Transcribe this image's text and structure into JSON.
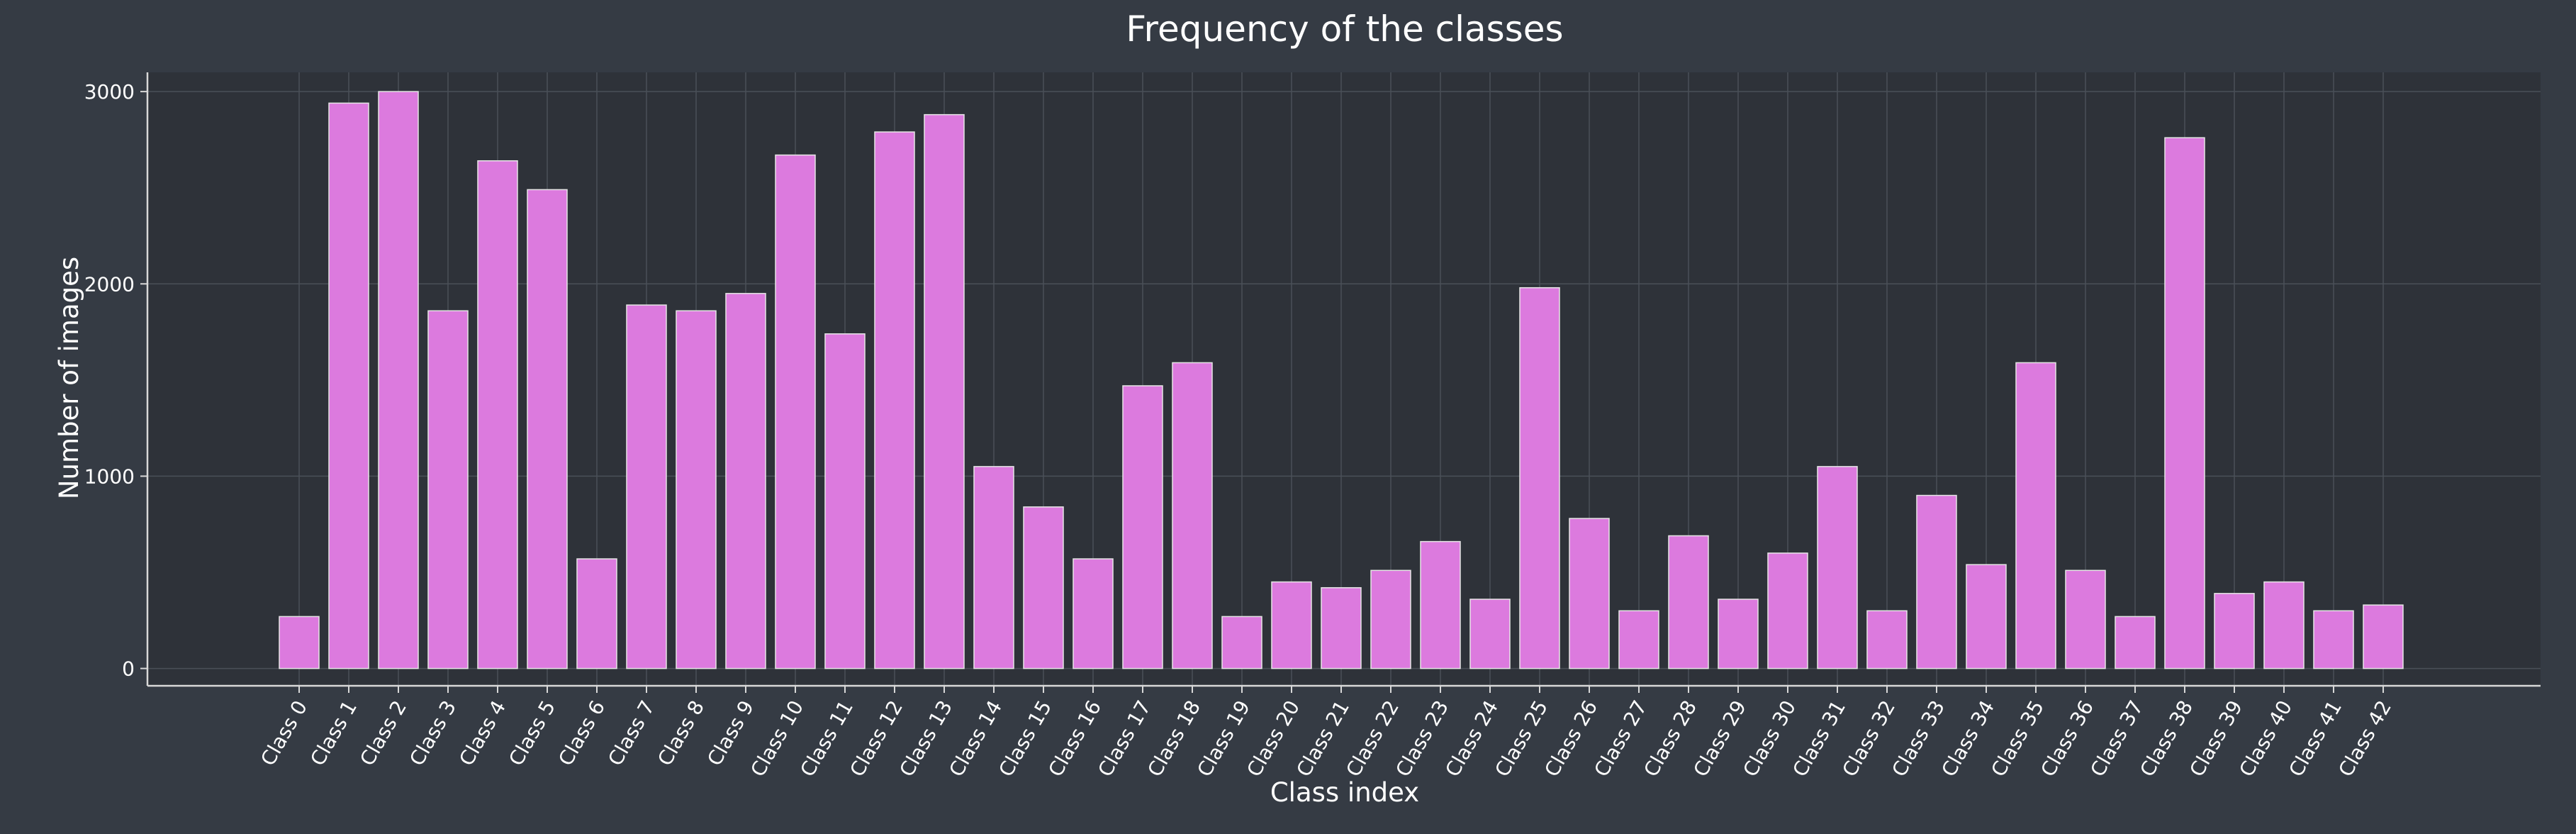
{
  "colors": {
    "background": "#353b44",
    "plot_background": "#2e3239",
    "bar_fill": "#dc7ade",
    "bar_stroke": "#e6e6e6",
    "grid": "#4a5058",
    "axis": "#d8d8d8",
    "text": "#ffffff"
  },
  "chart_data": {
    "type": "bar",
    "title": "Frequency of the classes",
    "xlabel": "Class index",
    "ylabel": "Number of images",
    "ylim": [
      -90,
      3100
    ],
    "yticks": [
      0,
      1000,
      2000,
      3000
    ],
    "grid": true,
    "legend": "none",
    "categories": [
      "Class 0",
      "Class 1",
      "Class 2",
      "Class 3",
      "Class 4",
      "Class 5",
      "Class 6",
      "Class 7",
      "Class 8",
      "Class 9",
      "Class 10",
      "Class 11",
      "Class 12",
      "Class 13",
      "Class 14",
      "Class 15",
      "Class 16",
      "Class 17",
      "Class 18",
      "Class 19",
      "Class 20",
      "Class 21",
      "Class 22",
      "Class 23",
      "Class 24",
      "Class 25",
      "Class 26",
      "Class 27",
      "Class 28",
      "Class 29",
      "Class 30",
      "Class 31",
      "Class 32",
      "Class 33",
      "Class 34",
      "Class 35",
      "Class 36",
      "Class 37",
      "Class 38",
      "Class 39",
      "Class 40",
      "Class 41",
      "Class 42"
    ],
    "values": [
      270,
      2940,
      3000,
      1860,
      2640,
      2490,
      570,
      1890,
      1860,
      1950,
      2670,
      1740,
      2790,
      2880,
      1050,
      840,
      570,
      1470,
      1590,
      270,
      450,
      420,
      510,
      660,
      360,
      1980,
      780,
      300,
      690,
      360,
      600,
      1050,
      300,
      900,
      540,
      1590,
      510,
      270,
      2760,
      390,
      450,
      300,
      330
    ]
  }
}
